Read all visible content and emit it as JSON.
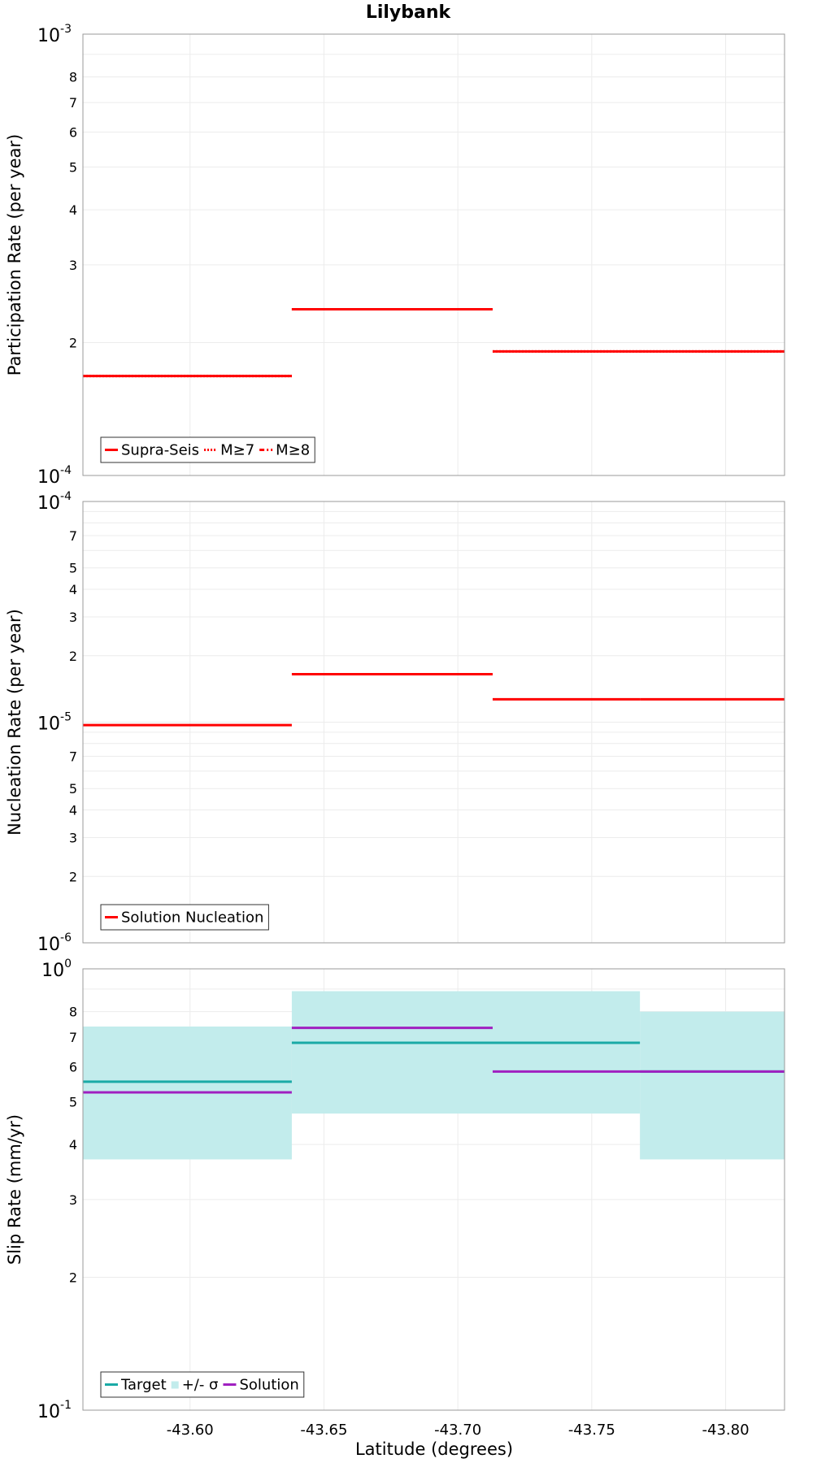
{
  "figure": {
    "title": "Lilybank",
    "xlabel": "Latitude (degrees)"
  },
  "chart_data": [
    {
      "type": "line",
      "ylabel": "Participation Rate (per year)",
      "yscale": "log",
      "ylim": [
        0.0001,
        0.001
      ],
      "xlim": [
        -43.56,
        -43.822
      ],
      "xticks": [
        -43.6,
        -43.65,
        -43.7,
        -43.75,
        -43.8
      ],
      "xtick_labels": [
        "-43.60",
        "-43.65",
        "-43.70",
        "-43.75",
        "-43.80"
      ],
      "ytick_labels": [
        {
          "value": 0.001,
          "base": "10",
          "exp": "-3",
          "major": true
        },
        {
          "value": 0.0008,
          "label": "8"
        },
        {
          "value": 0.0007,
          "label": "7"
        },
        {
          "value": 0.0006,
          "label": "6"
        },
        {
          "value": 0.0005,
          "label": "5"
        },
        {
          "value": 0.0004,
          "label": "4"
        },
        {
          "value": 0.0003,
          "label": "3"
        },
        {
          "value": 0.0002,
          "label": "2"
        },
        {
          "value": 0.0001,
          "base": "10",
          "exp": "-4",
          "major": true
        }
      ],
      "grid": true,
      "legend_position": "bottom-left",
      "series": [
        {
          "name": "Supra-Seis",
          "color": "#ff0000",
          "style": "solid",
          "segments": [
            [
              -43.56,
              -43.638,
              0.000168
            ],
            [
              -43.638,
              -43.713,
              0.000238
            ],
            [
              -43.713,
              -43.768,
              0.000191
            ],
            [
              -43.768,
              -43.822,
              0.000191
            ]
          ]
        },
        {
          "name": "M≥7",
          "color": "#ff0000",
          "style": "dotted",
          "segments": [
            [
              -43.56,
              -43.638,
              0.000168
            ],
            [
              -43.638,
              -43.713,
              0.000238
            ],
            [
              -43.713,
              -43.768,
              0.000191
            ],
            [
              -43.768,
              -43.822,
              0.000191
            ]
          ]
        },
        {
          "name": "M≥8",
          "color": "#ff0000",
          "style": "dashdot",
          "segments": []
        }
      ]
    },
    {
      "type": "line",
      "ylabel": "Nucleation Rate (per year)",
      "yscale": "log",
      "ylim": [
        1e-06,
        0.0001
      ],
      "xlim": [
        -43.56,
        -43.822
      ],
      "ytick_labels": [
        {
          "value": 0.0001,
          "base": "10",
          "exp": "-4",
          "major": true
        },
        {
          "value": 7e-05,
          "label": "7"
        },
        {
          "value": 5e-05,
          "label": "5"
        },
        {
          "value": 4e-05,
          "label": "4"
        },
        {
          "value": 3e-05,
          "label": "3"
        },
        {
          "value": 2e-05,
          "label": "2"
        },
        {
          "value": 1e-05,
          "base": "10",
          "exp": "-5",
          "major": true
        },
        {
          "value": 7e-06,
          "label": "7"
        },
        {
          "value": 5e-06,
          "label": "5"
        },
        {
          "value": 4e-06,
          "label": "4"
        },
        {
          "value": 3e-06,
          "label": "3"
        },
        {
          "value": 2e-06,
          "label": "2"
        },
        {
          "value": 1e-06,
          "base": "10",
          "exp": "-6",
          "major": true
        }
      ],
      "grid": true,
      "legend_position": "bottom-left",
      "series": [
        {
          "name": "Solution Nucleation",
          "color": "#ff0000",
          "style": "solid",
          "segments": [
            [
              -43.56,
              -43.638,
              9.7e-06
            ],
            [
              -43.638,
              -43.713,
              1.65e-05
            ],
            [
              -43.713,
              -43.768,
              1.27e-05
            ],
            [
              -43.768,
              -43.822,
              1.27e-05
            ]
          ]
        }
      ]
    },
    {
      "type": "line",
      "ylabel": "Slip Rate (mm/yr)",
      "yscale": "log",
      "ylim": [
        0.1,
        1
      ],
      "xlim": [
        -43.56,
        -43.822
      ],
      "ytick_labels": [
        {
          "value": 1,
          "base": "10",
          "exp": "0",
          "major": true
        },
        {
          "value": 0.8,
          "label": "8"
        },
        {
          "value": 0.7,
          "label": "7"
        },
        {
          "value": 0.6,
          "label": "6"
        },
        {
          "value": 0.5,
          "label": "5"
        },
        {
          "value": 0.4,
          "label": "4"
        },
        {
          "value": 0.3,
          "label": "3"
        },
        {
          "value": 0.2,
          "label": "2"
        },
        {
          "value": 0.1,
          "base": "10",
          "exp": "-1",
          "major": true
        }
      ],
      "grid": true,
      "legend_position": "bottom-left",
      "bands": [
        {
          "name": "+/- σ",
          "color": "#c2ecec",
          "segments": [
            [
              -43.56,
              -43.638,
              0.37,
              0.74
            ],
            [
              -43.638,
              -43.768,
              0.47,
              0.89
            ],
            [
              -43.768,
              -43.822,
              0.37,
              0.8
            ]
          ]
        }
      ],
      "series": [
        {
          "name": "Target",
          "color": "#1aaaa6",
          "style": "solid",
          "segments": [
            [
              -43.56,
              -43.638,
              0.555
            ],
            [
              -43.638,
              -43.768,
              0.68
            ],
            [
              -43.768,
              -43.822,
              0.585
            ]
          ]
        },
        {
          "name": "Solution",
          "color": "#a020c0",
          "style": "solid",
          "segments": [
            [
              -43.56,
              -43.638,
              0.525
            ],
            [
              -43.638,
              -43.713,
              0.735
            ],
            [
              -43.713,
              -43.822,
              0.585
            ]
          ]
        }
      ]
    }
  ]
}
